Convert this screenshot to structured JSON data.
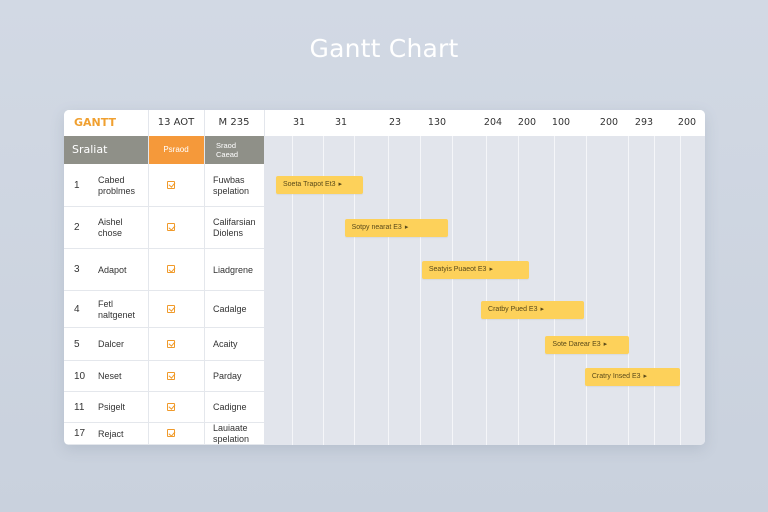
{
  "page": {
    "title": "Gantt Chart"
  },
  "header": {
    "brand": "GANTT",
    "col2": "13 AOT",
    "col3": "M 235",
    "ticks": [
      "31",
      "31",
      "23",
      "130",
      "204",
      "200",
      "100",
      "200",
      "293",
      "200"
    ]
  },
  "subheader": {
    "col1": "Sraliat",
    "col2": "Psraod",
    "col3_line1": "Sraod",
    "col3_line2": "Caead"
  },
  "rows": [
    {
      "num": "1",
      "name": "Cabed\nproblmes",
      "type": "Fuwbas\nspelation",
      "bar": "Soeta Trapot Et3",
      "bar_start": 0.0,
      "bar_end": 0.203
    },
    {
      "num": "2",
      "name": "Aishel\nchose",
      "type": "Califarsian\nDiolens",
      "bar": "Sotpy nearat E3",
      "bar_start": 0.16,
      "bar_end": 0.4
    },
    {
      "num": "3",
      "name": "Adapot",
      "type": "Liadgrene",
      "bar": "Seatyis Puaeot E3",
      "bar_start": 0.34,
      "bar_end": 0.59
    },
    {
      "num": "4",
      "name": "Fetl\nnaltgenet",
      "type": "Cadalge",
      "bar": "Cratby Pued E3",
      "bar_start": 0.478,
      "bar_end": 0.718
    },
    {
      "num": "5",
      "name": "Dalcer",
      "type": "Acaity",
      "bar": "Sote Darear E3",
      "bar_start": 0.628,
      "bar_end": 0.823
    },
    {
      "num": "10",
      "name": "Neset",
      "type": "Parday",
      "bar": "Cratry Insed E3",
      "bar_start": 0.72,
      "bar_end": 0.941
    },
    {
      "num": "11",
      "name": "Psigelt",
      "type": "Cadigne",
      "bar": "",
      "bar_start": null,
      "bar_end": null
    },
    {
      "num": "17",
      "name": "Rejact",
      "type": "Lauiaate\nspelation",
      "bar": "",
      "bar_start": null,
      "bar_end": null
    }
  ],
  "colors": {
    "accent": "#f5993a",
    "bar": "#fdd15a",
    "subheader": "#8f9088",
    "brand": "#f0a030"
  },
  "icons": {
    "row_check": "checkbox-icon",
    "bar_arrow": "chevron-right-icon"
  }
}
